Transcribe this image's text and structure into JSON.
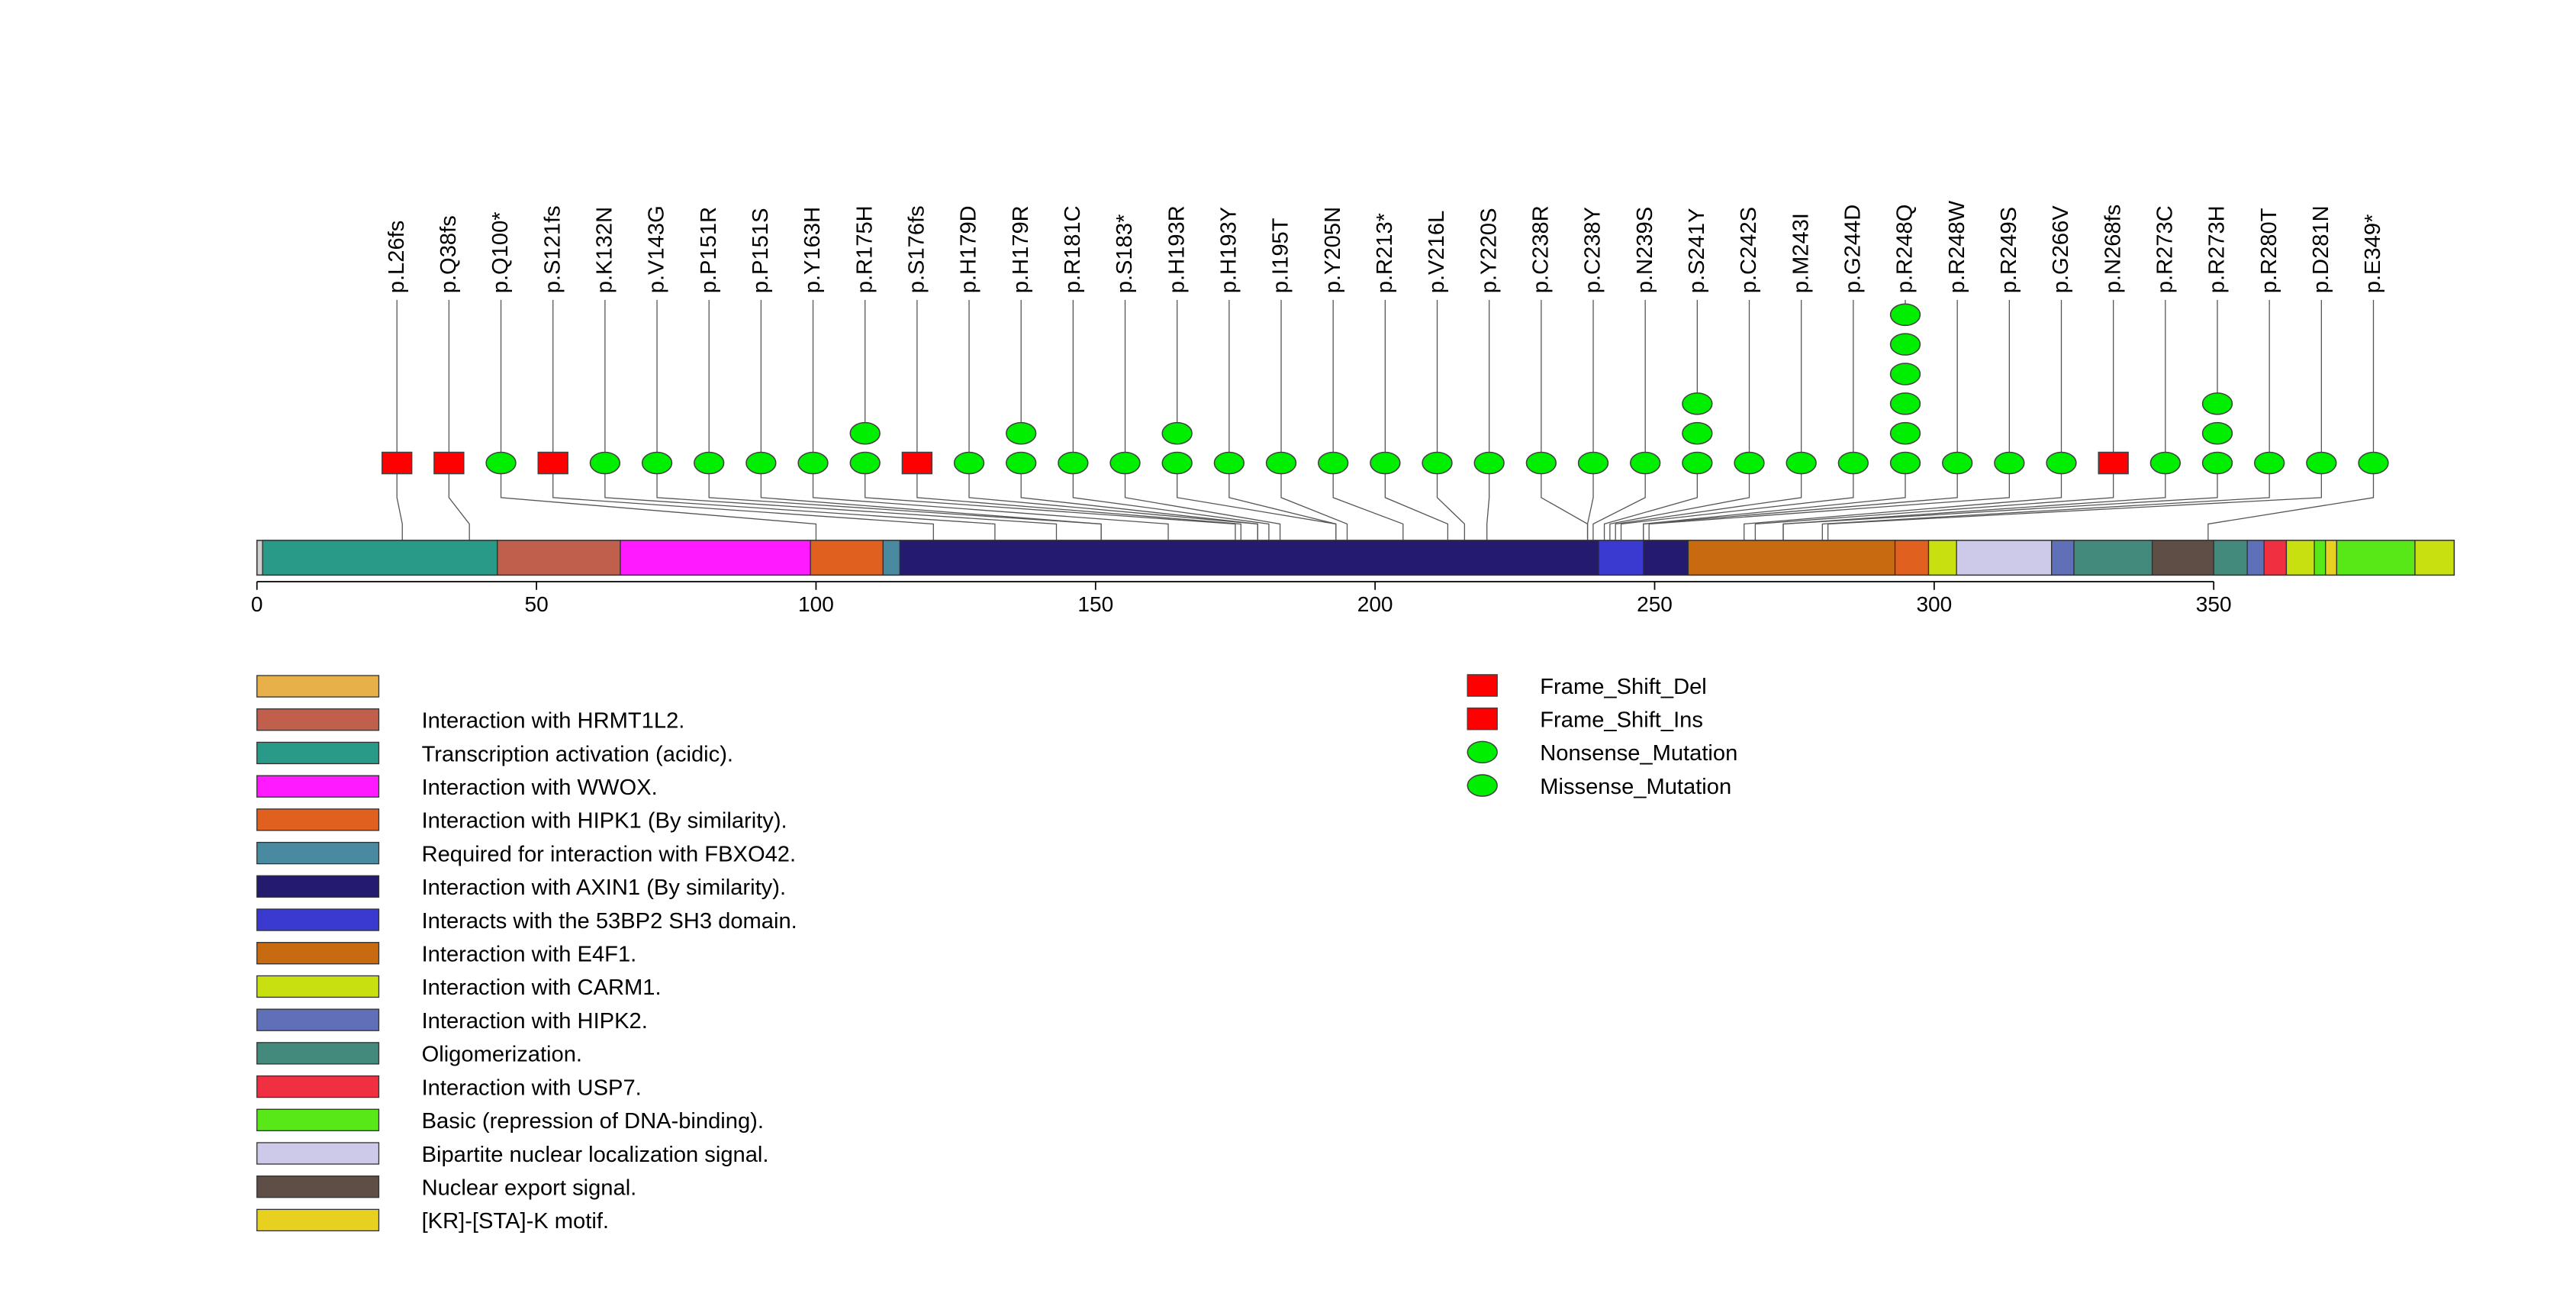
{
  "chart_data": {
    "type": "lollipop",
    "axis": {
      "min": 0,
      "max": 393,
      "ticks": [
        0,
        50,
        100,
        150,
        200,
        250,
        300,
        350
      ]
    },
    "domains": [
      {
        "label": "Transcription activation (acidic).",
        "start": 1,
        "end": 43,
        "color": "#2a9a88"
      },
      {
        "label": "Interaction with HRMT1L2.",
        "start": 43,
        "end": 65,
        "color": "#c0604c"
      },
      {
        "label": "Interaction with WWOX.",
        "start": 65,
        "end": 99,
        "color": "#ff1aff"
      },
      {
        "label": "Interaction with HIPK1 (By similarity).",
        "start": 99,
        "end": 112,
        "color": "#e06020"
      },
      {
        "label": "Required for interaction with FBXO42.",
        "start": 112,
        "end": 115,
        "color": "#4a8aa0"
      },
      {
        "label": "Interaction with AXIN1 (By similarity).",
        "start": 115,
        "end": 240,
        "color": "#241a6e"
      },
      {
        "label": "Interacts with the 53BP2 SH3 domain.",
        "start": 240,
        "end": 248,
        "color": "#3a3ad0"
      },
      {
        "label": "Interaction with AXIN1 (By similarity).",
        "start": 248,
        "end": 256,
        "color": "#241a6e"
      },
      {
        "label": "Interaction with E4F1.",
        "start": 256,
        "end": 293,
        "color": "#c86a10"
      },
      {
        "label": "Interaction with HIPK1 (By similarity).",
        "start": 293,
        "end": 299,
        "color": "#e06020"
      },
      {
        "label": "Interaction with CARM1.",
        "start": 299,
        "end": 304,
        "color": "#c8e010"
      },
      {
        "label": "Bipartite nuclear localization signal.",
        "start": 304,
        "end": 321,
        "color": "#cccae8"
      },
      {
        "label": "Interaction with HIPK2.",
        "start": 321,
        "end": 325,
        "color": "#6070b8"
      },
      {
        "label": "Oligomerization.",
        "start": 325,
        "end": 339,
        "color": "#448a7c"
      },
      {
        "label": "Nuclear export signal.",
        "start": 339,
        "end": 350,
        "color": "#5e4e46"
      },
      {
        "label": "Oligomerization.",
        "start": 350,
        "end": 356,
        "color": "#448a7c"
      },
      {
        "label": "Interaction with HIPK2.",
        "start": 356,
        "end": 359,
        "color": "#6070b8"
      },
      {
        "label": "Interaction with USP7.",
        "start": 359,
        "end": 363,
        "color": "#f03040"
      },
      {
        "label": "Interaction with CARM1.",
        "start": 363,
        "end": 368,
        "color": "#c8e010"
      },
      {
        "label": "Basic (repression of DNA-binding).",
        "start": 368,
        "end": 370,
        "color": "#58e818"
      },
      {
        "label": "[KR]-[STA]-K motif.",
        "start": 370,
        "end": 372,
        "color": "#e8d020"
      },
      {
        "label": "Basic (repression of DNA-binding).",
        "start": 372,
        "end": 386,
        "color": "#58e818"
      },
      {
        "label": "Interaction with CARM1.",
        "start": 386,
        "end": 393,
        "color": "#c8e010"
      }
    ],
    "mutations": [
      {
        "label": "p.L26fs",
        "pos": 26,
        "count": 1,
        "shape": "square"
      },
      {
        "label": "p.Q38fs",
        "pos": 38,
        "count": 1,
        "shape": "square"
      },
      {
        "label": "p.Q100*",
        "pos": 100,
        "count": 1,
        "shape": "ellipse"
      },
      {
        "label": "p.S121fs",
        "pos": 121,
        "count": 1,
        "shape": "square"
      },
      {
        "label": "p.K132N",
        "pos": 132,
        "count": 1,
        "shape": "ellipse"
      },
      {
        "label": "p.V143G",
        "pos": 143,
        "count": 1,
        "shape": "ellipse"
      },
      {
        "label": "p.P151R",
        "pos": 151,
        "count": 1,
        "shape": "ellipse"
      },
      {
        "label": "p.P151S",
        "pos": 151,
        "count": 1,
        "shape": "ellipse"
      },
      {
        "label": "p.Y163H",
        "pos": 163,
        "count": 1,
        "shape": "ellipse"
      },
      {
        "label": "p.R175H",
        "pos": 175,
        "count": 2,
        "shape": "ellipse"
      },
      {
        "label": "p.S176fs",
        "pos": 176,
        "count": 1,
        "shape": "square"
      },
      {
        "label": "p.H179D",
        "pos": 179,
        "count": 1,
        "shape": "ellipse"
      },
      {
        "label": "p.H179R",
        "pos": 179,
        "count": 2,
        "shape": "ellipse"
      },
      {
        "label": "p.R181C",
        "pos": 181,
        "count": 1,
        "shape": "ellipse"
      },
      {
        "label": "p.S183*",
        "pos": 183,
        "count": 1,
        "shape": "ellipse"
      },
      {
        "label": "p.H193R",
        "pos": 193,
        "count": 2,
        "shape": "ellipse"
      },
      {
        "label": "p.H193Y",
        "pos": 193,
        "count": 1,
        "shape": "ellipse"
      },
      {
        "label": "p.I195T",
        "pos": 195,
        "count": 1,
        "shape": "ellipse"
      },
      {
        "label": "p.Y205N",
        "pos": 205,
        "count": 1,
        "shape": "ellipse"
      },
      {
        "label": "p.R213*",
        "pos": 213,
        "count": 1,
        "shape": "ellipse"
      },
      {
        "label": "p.V216L",
        "pos": 216,
        "count": 1,
        "shape": "ellipse"
      },
      {
        "label": "p.Y220S",
        "pos": 220,
        "count": 1,
        "shape": "ellipse"
      },
      {
        "label": "p.C238R",
        "pos": 238,
        "count": 1,
        "shape": "ellipse"
      },
      {
        "label": "p.C238Y",
        "pos": 238,
        "count": 1,
        "shape": "ellipse"
      },
      {
        "label": "p.N239S",
        "pos": 239,
        "count": 1,
        "shape": "ellipse"
      },
      {
        "label": "p.S241Y",
        "pos": 241,
        "count": 3,
        "shape": "ellipse"
      },
      {
        "label": "p.C242S",
        "pos": 242,
        "count": 1,
        "shape": "ellipse"
      },
      {
        "label": "p.M243I",
        "pos": 243,
        "count": 1,
        "shape": "ellipse"
      },
      {
        "label": "p.G244D",
        "pos": 244,
        "count": 1,
        "shape": "ellipse"
      },
      {
        "label": "p.R248Q",
        "pos": 248,
        "count": 6,
        "shape": "ellipse"
      },
      {
        "label": "p.R248W",
        "pos": 248,
        "count": 1,
        "shape": "ellipse"
      },
      {
        "label": "p.R249S",
        "pos": 249,
        "count": 1,
        "shape": "ellipse"
      },
      {
        "label": "p.G266V",
        "pos": 266,
        "count": 1,
        "shape": "ellipse"
      },
      {
        "label": "p.N268fs",
        "pos": 268,
        "count": 1,
        "shape": "square"
      },
      {
        "label": "p.R273C",
        "pos": 273,
        "count": 1,
        "shape": "ellipse"
      },
      {
        "label": "p.R273H",
        "pos": 273,
        "count": 3,
        "shape": "ellipse"
      },
      {
        "label": "p.R280T",
        "pos": 280,
        "count": 1,
        "shape": "ellipse"
      },
      {
        "label": "p.D281N",
        "pos": 281,
        "count": 1,
        "shape": "ellipse"
      },
      {
        "label": "p.E349*",
        "pos": 349,
        "count": 1,
        "shape": "ellipse"
      }
    ],
    "domain_legend": [
      {
        "label": "",
        "color": "#e8b048"
      },
      {
        "label": "Interaction with HRMT1L2.",
        "color": "#c0604c"
      },
      {
        "label": "Transcription activation (acidic).",
        "color": "#2a9a88"
      },
      {
        "label": "Interaction with WWOX.",
        "color": "#ff1aff"
      },
      {
        "label": "Interaction with HIPK1 (By similarity).",
        "color": "#e06020"
      },
      {
        "label": "Required for interaction with FBXO42.",
        "color": "#4a8aa0"
      },
      {
        "label": "Interaction with AXIN1 (By similarity).",
        "color": "#241a6e"
      },
      {
        "label": "Interacts with the 53BP2 SH3 domain.",
        "color": "#3a3ad0"
      },
      {
        "label": "Interaction with E4F1.",
        "color": "#c86a10"
      },
      {
        "label": "Interaction with CARM1.",
        "color": "#c8e010"
      },
      {
        "label": "Interaction with HIPK2.",
        "color": "#6070b8"
      },
      {
        "label": "Oligomerization.",
        "color": "#448a7c"
      },
      {
        "label": "Interaction with USP7.",
        "color": "#f03040"
      },
      {
        "label": "Basic (repression of DNA-binding).",
        "color": "#58e818"
      },
      {
        "label": "Bipartite nuclear localization signal.",
        "color": "#cccae8"
      },
      {
        "label": "Nuclear export signal.",
        "color": "#5e4e46"
      },
      {
        "label": "[KR]-[STA]-K motif.",
        "color": "#e8d020"
      }
    ],
    "mutation_legend": [
      {
        "label": "Frame_Shift_Del",
        "shape": "square",
        "color": "#ff0000"
      },
      {
        "label": "Frame_Shift_Ins",
        "shape": "square",
        "color": "#ff0000"
      },
      {
        "label": "Nonsense_Mutation",
        "shape": "ellipse",
        "color": "#00ee00"
      },
      {
        "label": "Missense_Mutation",
        "shape": "ellipse",
        "color": "#00ee00"
      }
    ]
  }
}
